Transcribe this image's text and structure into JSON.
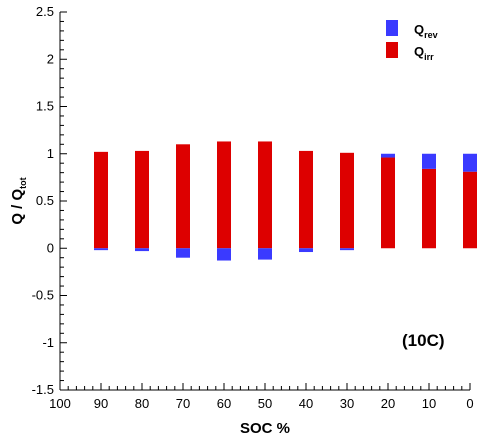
{
  "chart_data": {
    "type": "bar",
    "stacked": true,
    "categories": [
      "90",
      "80",
      "70",
      "60",
      "50",
      "40",
      "30",
      "20",
      "10",
      "0"
    ],
    "x_tick_labels": [
      "100",
      "90",
      "80",
      "70",
      "60",
      "50",
      "40",
      "30",
      "20",
      "10",
      "0"
    ],
    "xlabel": "SOC %",
    "ylabel": {
      "main": "Q / Q",
      "sub": "tot"
    },
    "ylim": [
      -1.5,
      2.5
    ],
    "y_ticks": [
      -1.5,
      -1,
      -0.5,
      0,
      0.5,
      1,
      1.5,
      2,
      2.5
    ],
    "y_tick_labels": [
      "-1.5",
      "-1",
      "-0.5",
      "0",
      "0.5",
      "1",
      "1.5",
      "2",
      "2.5"
    ],
    "series": [
      {
        "name_main": "Q",
        "name_sub": "rev",
        "color": "#3a3aff",
        "values": [
          -0.02,
          -0.03,
          -0.1,
          -0.13,
          -0.12,
          -0.04,
          -0.02,
          0.04,
          0.16,
          0.19
        ]
      },
      {
        "name_main": "Q",
        "name_sub": "irr",
        "color": "#dd0000",
        "values": [
          1.02,
          1.03,
          1.1,
          1.13,
          1.13,
          1.03,
          1.01,
          0.96,
          0.84,
          0.81
        ]
      }
    ],
    "annotation": "(10C)",
    "legend_position": "top-right",
    "grid": false
  }
}
